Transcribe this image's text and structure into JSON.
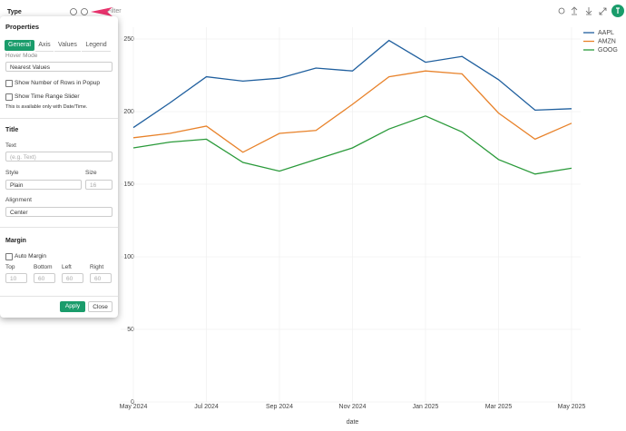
{
  "toolbar": {
    "type_label": "Type",
    "filter_label": "Filter"
  },
  "panel": {
    "title": "Properties",
    "tabs": [
      "General",
      "Axis",
      "Values",
      "Legend"
    ],
    "hover_mode_label": "Hover Mode",
    "hover_mode_value": "Nearest Values",
    "show_rows_label": "Show Number of Rows in Popup",
    "show_slider_label": "Show Time Range Slider",
    "slider_note": "This is available only with Date/Time.",
    "title_section": "Title",
    "text_label": "Text",
    "text_placeholder": "(e.g. Text)",
    "style_label": "Style",
    "size_label": "Size",
    "style_value": "Plain",
    "size_placeholder": "16",
    "alignment_label": "Alignment",
    "alignment_value": "Center",
    "margin_section": "Margin",
    "auto_margin_label": "Auto Margin",
    "margin_labels": [
      "Top",
      "Bottom",
      "Left",
      "Right"
    ],
    "margin_values": [
      "10",
      "60",
      "60",
      "60"
    ],
    "apply": "Apply",
    "close": "Close"
  },
  "chart_data": {
    "type": "line",
    "x_label": "date",
    "categories": [
      "May 2024",
      null,
      "Jul 2024",
      null,
      "Sep 2024",
      null,
      "Nov 2024",
      null,
      "Jan 2025",
      null,
      "Mar 2025",
      null,
      "May 2025"
    ],
    "series": [
      {
        "name": "AAPL",
        "color": "#1f5f9e",
        "values": [
          189,
          206,
          224,
          221,
          223,
          230,
          228,
          249,
          234,
          238,
          222,
          201,
          202
        ]
      },
      {
        "name": "AMZN",
        "color": "#e8822a",
        "values": [
          182,
          185,
          190,
          172,
          185,
          187,
          205,
          224,
          228,
          226,
          199,
          181,
          192
        ]
      },
      {
        "name": "GOOG",
        "color": "#2a9a3a",
        "values": [
          175,
          179,
          181,
          165,
          159,
          167,
          175,
          188,
          197,
          186,
          167,
          157,
          161
        ]
      }
    ],
    "ylim": [
      0,
      250
    ],
    "yticks": [
      0,
      50,
      100,
      150,
      200,
      250
    ],
    "grid": true,
    "legend": "upper right"
  }
}
